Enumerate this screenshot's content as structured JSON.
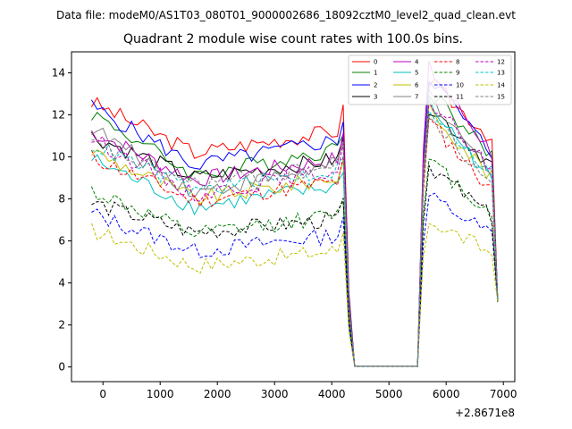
{
  "chart_data": {
    "type": "line",
    "suptitle": "Data file: modeM0/AS1T03_080T01_9000002686_18092cztM0_level2_quad_clean.evt",
    "title": "Quadrant 2 module wise count rates with 100.0s bins.",
    "xlabel": "",
    "ylabel": "",
    "x_offset_label": "+2.8671e8",
    "xlim": [
      -550,
      7200
    ],
    "ylim": [
      -0.7,
      15.0
    ],
    "xticks": [
      0,
      1000,
      2000,
      3000,
      4000,
      5000,
      6000,
      7000
    ],
    "xtick_labels": [
      "0",
      "1000",
      "2000",
      "3000",
      "4000",
      "5000",
      "6000",
      "7000"
    ],
    "yticks": [
      0,
      2,
      4,
      6,
      8,
      10,
      12,
      14
    ],
    "ytick_labels": [
      "0",
      "2",
      "4",
      "6",
      "8",
      "10",
      "12",
      "14"
    ],
    "legend_position": "top-right",
    "legend_columns": 4,
    "series": [
      {
        "name": "0",
        "color": "#ff0000",
        "style": "solid",
        "base": 12.6,
        "dip": 10.2,
        "post": 13.6,
        "end": 10.9
      },
      {
        "name": "1",
        "color": "#008000",
        "style": "solid",
        "base": 12.1,
        "dip": 9.1,
        "post": 13.2,
        "end": 10.0
      },
      {
        "name": "2",
        "color": "#0000ff",
        "style": "solid",
        "base": 12.4,
        "dip": 9.6,
        "post": 13.9,
        "end": 10.1
      },
      {
        "name": "3",
        "color": "#000000",
        "style": "solid",
        "base": 11.0,
        "dip": 9.0,
        "post": 12.4,
        "end": 9.6
      },
      {
        "name": "4",
        "color": "#bf00bf",
        "style": "solid",
        "base": 11.2,
        "dip": 8.9,
        "post": 14.2,
        "end": 10.2
      },
      {
        "name": "5",
        "color": "#00bfbf",
        "style": "solid",
        "base": 9.9,
        "dip": 7.6,
        "post": 12.5,
        "end": 8.9
      },
      {
        "name": "6",
        "color": "#bfbf00",
        "style": "solid",
        "base": 10.3,
        "dip": 8.0,
        "post": 12.3,
        "end": 9.0
      },
      {
        "name": "7",
        "color": "#808080",
        "style": "solid",
        "base": 11.4,
        "dip": 8.3,
        "post": 13.0,
        "end": 9.2
      },
      {
        "name": "8",
        "color": "#ff0000",
        "style": "dashed",
        "base": 10.0,
        "dip": 7.9,
        "post": 11.7,
        "end": 8.4
      },
      {
        "name": "9",
        "color": "#008000",
        "style": "dashed",
        "base": 8.4,
        "dip": 6.3,
        "post": 9.8,
        "end": 7.3
      },
      {
        "name": "10",
        "color": "#0000ff",
        "style": "dashed",
        "base": 7.3,
        "dip": 5.5,
        "post": 8.1,
        "end": 6.3
      },
      {
        "name": "11",
        "color": "#000000",
        "style": "dashed",
        "base": 7.8,
        "dip": 6.4,
        "post": 9.6,
        "end": 7.1
      },
      {
        "name": "12",
        "color": "#bf00bf",
        "style": "dashed",
        "base": 10.9,
        "dip": 8.2,
        "post": 12.7,
        "end": 9.4
      },
      {
        "name": "13",
        "color": "#00bfbf",
        "style": "dashed",
        "base": 10.6,
        "dip": 8.4,
        "post": 12.3,
        "end": 9.2
      },
      {
        "name": "14",
        "color": "#bfbf00",
        "style": "dashed",
        "base": 6.5,
        "dip": 4.8,
        "post": 7.0,
        "end": 5.4
      },
      {
        "name": "15",
        "color": "#808080",
        "style": "dashed",
        "base": 10.6,
        "dip": 8.7,
        "post": 12.1,
        "end": 8.5
      }
    ],
    "time_grid": {
      "start": -200,
      "step": 100,
      "gap_start": 4400,
      "gap_end": 5500,
      "stop": 6900
    }
  }
}
